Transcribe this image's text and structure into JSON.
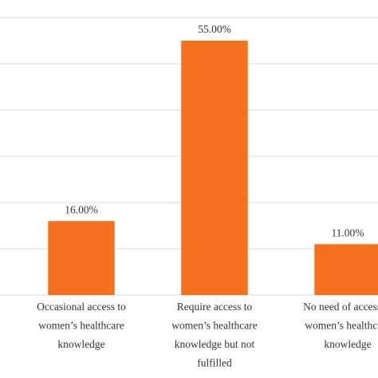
{
  "chart_data": {
    "type": "bar",
    "categories": [
      [
        "Occasional access to",
        "women’s healthcare",
        "knowledge"
      ],
      [
        "Require access to",
        "women’s healthcare",
        "knowledge but not",
        "fulfilled"
      ],
      [
        "No need of access to",
        "women’s healthcare",
        "knowledge"
      ]
    ],
    "values": [
      16,
      55,
      11
    ],
    "value_labels": [
      "16.00%",
      "55.00%",
      "11.00%"
    ],
    "color": "#f4711f",
    "ylim": [
      0,
      60
    ],
    "yticks": [
      0,
      10,
      20,
      30,
      40,
      50,
      60
    ],
    "grid": true
  }
}
